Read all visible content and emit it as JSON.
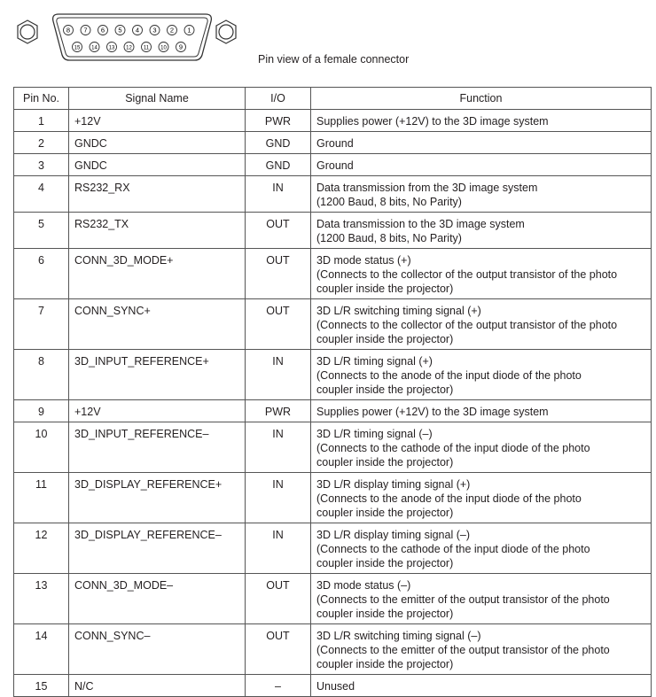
{
  "connector": {
    "top_pins": [
      "8",
      "7",
      "6",
      "5",
      "4",
      "3",
      "2",
      "1"
    ],
    "bottom_pins": [
      "15",
      "14",
      "13",
      "12",
      "11",
      "10",
      "9"
    ],
    "caption": "Pin view of a female connector"
  },
  "table": {
    "headers": [
      "Pin No.",
      "Signal Name",
      "I/O",
      "Function"
    ],
    "rows": [
      {
        "pin": "1",
        "signal": "+12V",
        "io": "PWR",
        "function": "Supplies power (+12V) to the 3D image system"
      },
      {
        "pin": "2",
        "signal": "GNDC",
        "io": "GND",
        "function": "Ground"
      },
      {
        "pin": "3",
        "signal": "GNDC",
        "io": "GND",
        "function": "Ground"
      },
      {
        "pin": "4",
        "signal": "RS232_RX",
        "io": "IN",
        "function": "Data transmission from the 3D image system\n(1200 Baud, 8 bits, No Parity)"
      },
      {
        "pin": "5",
        "signal": "RS232_TX",
        "io": "OUT",
        "function": "Data transmission to the 3D image system\n(1200 Baud, 8 bits, No Parity)"
      },
      {
        "pin": "6",
        "signal": "CONN_3D_MODE+",
        "io": "OUT",
        "function": "3D mode status (+)\n(Connects to the collector of the output transistor of the photo\ncoupler inside the projector)"
      },
      {
        "pin": "7",
        "signal": "CONN_SYNC+",
        "io": "OUT",
        "function": "3D L/R switching timing signal (+)\n(Connects to the collector of the output transistor of the photo\ncoupler inside the projector)"
      },
      {
        "pin": "8",
        "signal": "3D_INPUT_REFERENCE+",
        "io": "IN",
        "function": "3D L/R timing signal (+)\n(Connects to the anode of the input diode of the photo\ncoupler inside the projector)"
      },
      {
        "pin": "9",
        "signal": "+12V",
        "io": "PWR",
        "function": "Supplies power (+12V) to the 3D image system"
      },
      {
        "pin": "10",
        "signal": "3D_INPUT_REFERENCE–",
        "io": "IN",
        "function": "3D L/R timing signal (–)\n(Connects to the cathode of the input diode of the photo\ncoupler inside the projector)"
      },
      {
        "pin": "11",
        "signal": "3D_DISPLAY_REFERENCE+",
        "io": "IN",
        "function": "3D L/R display timing signal (+)\n(Connects to the anode of the input diode of the photo\ncoupler inside the projector)"
      },
      {
        "pin": "12",
        "signal": "3D_DISPLAY_REFERENCE–",
        "io": "IN",
        "function": "3D L/R display timing signal (–)\n(Connects to the cathode of the input diode of the photo\ncoupler inside the projector)"
      },
      {
        "pin": "13",
        "signal": "CONN_3D_MODE–",
        "io": "OUT",
        "function": "3D mode status (–)\n(Connects to the emitter of the output transistor of the photo\ncoupler inside the projector)"
      },
      {
        "pin": "14",
        "signal": "CONN_SYNC–",
        "io": "OUT",
        "function": "3D L/R switching timing signal (–)\n(Connects to the emitter of the output transistor of the photo\ncoupler inside the projector)"
      },
      {
        "pin": "15",
        "signal": "N/C",
        "io": "–",
        "function": "Unused"
      }
    ]
  }
}
